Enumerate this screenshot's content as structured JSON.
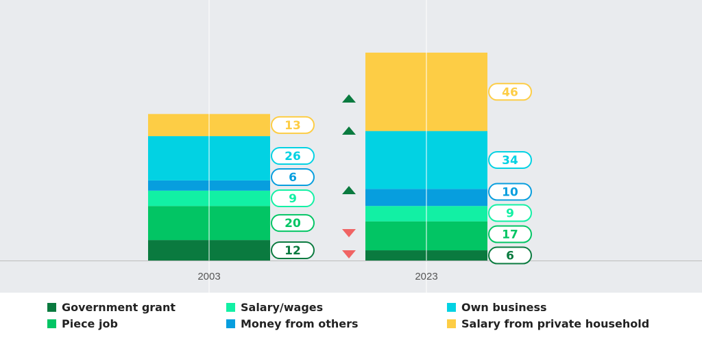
{
  "colors": {
    "background": "#E9EBEE",
    "gridline": "#FFFFFF",
    "axis": "#BBBBBB",
    "up_arrow": "#0A7A3F",
    "down_arrow": "#F06464"
  },
  "chart_data": {
    "type": "bar",
    "stacked": true,
    "categories": [
      "2003",
      "2023"
    ],
    "ylim": [
      0,
      126
    ],
    "series": [
      {
        "name": "Government grant",
        "color": "#0A7A3F",
        "values": [
          12,
          6
        ]
      },
      {
        "name": "Piece job",
        "color": "#02C564",
        "values": [
          20,
          17
        ]
      },
      {
        "name": "Salary/wages",
        "color": "#12F0A4",
        "values": [
          9,
          9
        ]
      },
      {
        "name": "Money from others",
        "color": "#079EDE",
        "values": [
          6,
          10
        ]
      },
      {
        "name": "Own business",
        "color": "#02D2E3",
        "values": [
          26,
          34
        ]
      },
      {
        "name": "Salary from private household",
        "color": "#FDCD45",
        "values": [
          13,
          46
        ]
      }
    ],
    "change_markers": [
      {
        "series": "Government grant",
        "direction": "down"
      },
      {
        "series": "Piece job",
        "direction": "down"
      },
      {
        "series": "Money from others",
        "direction": "up"
      },
      {
        "series": "Own business",
        "direction": "up"
      },
      {
        "series": "Salary from private household",
        "direction": "up"
      }
    ],
    "legend_position": "bottom",
    "grid": true
  },
  "legend": {
    "items": [
      {
        "label": "Government grant",
        "color": "#0A7A3F"
      },
      {
        "label": "Salary/wages",
        "color": "#12F0A4"
      },
      {
        "label": "Own business",
        "color": "#02D2E3"
      },
      {
        "label": "Piece job",
        "color": "#02C564"
      },
      {
        "label": "Money from others",
        "color": "#079EDE"
      },
      {
        "label": "Salary from private household",
        "color": "#FDCD45"
      }
    ]
  }
}
